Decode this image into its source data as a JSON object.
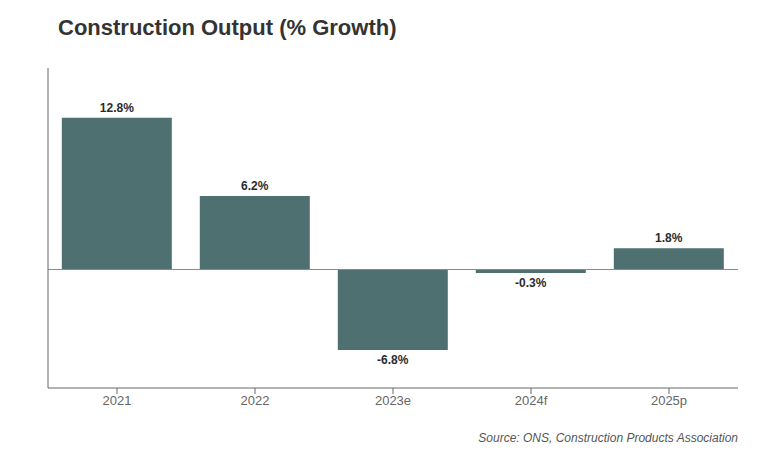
{
  "chart_data": {
    "type": "bar",
    "title": "Construction Output (% Growth)",
    "categories": [
      "2021",
      "2022",
      "2023e",
      "2024f",
      "2025p"
    ],
    "values": [
      12.8,
      6.2,
      -6.8,
      -0.3,
      1.8
    ],
    "value_labels": [
      "12.8%",
      "6.2%",
      "-6.8%",
      "-0.3%",
      "1.8%"
    ],
    "data_labels": true,
    "color": "#4e7070",
    "ylim": [
      -10,
      17
    ],
    "tick_labels": "x",
    "annotations": [
      "Source: ONS, Construction Products Association"
    ]
  }
}
